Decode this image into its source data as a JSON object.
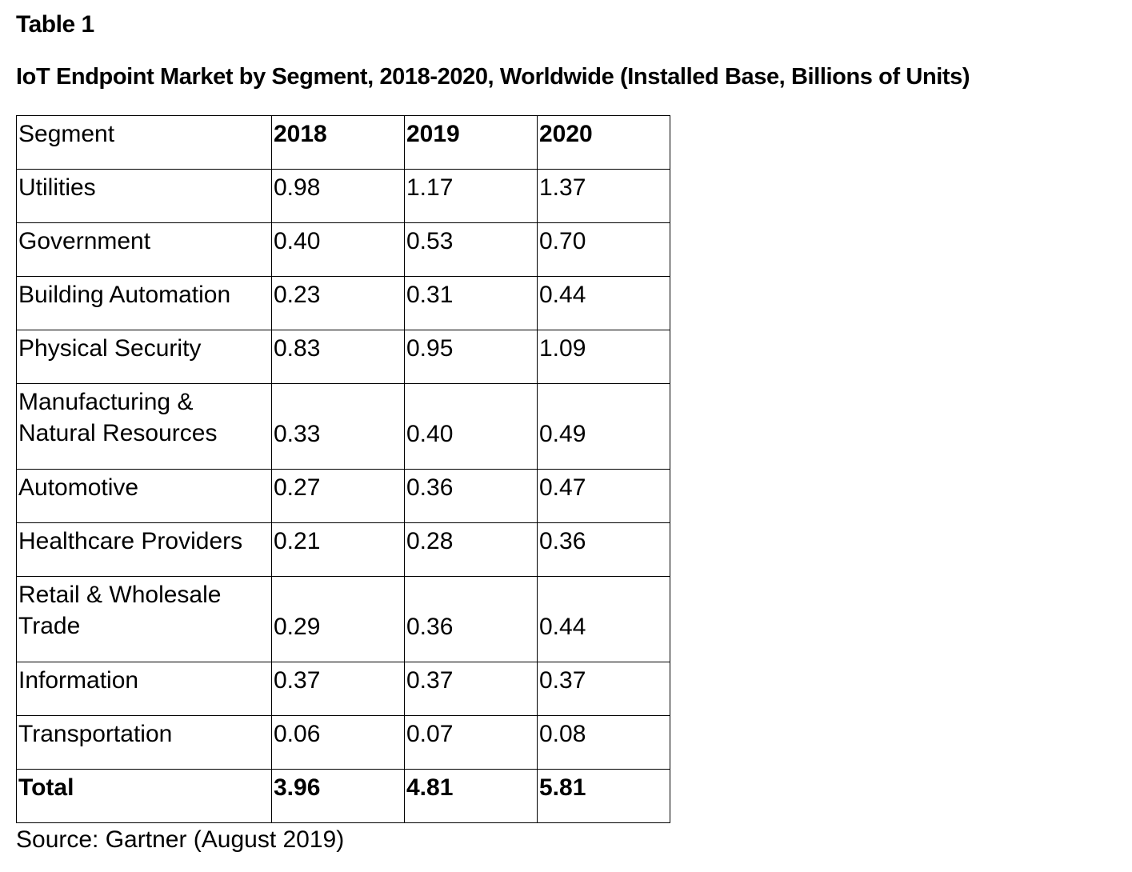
{
  "table_label": "Table 1",
  "title": "IoT Endpoint Market by Segment, 2018-2020, Worldwide (Installed Base, Billions of Units)",
  "columns": [
    "Segment",
    "2018",
    "2019",
    "2020"
  ],
  "rows": [
    {
      "segment": "Utilities",
      "v2018": "0.98",
      "v2019": "1.17",
      "v2020": "1.37"
    },
    {
      "segment": "Government",
      "v2018": "0.40",
      "v2019": "0.53",
      "v2020": "0.70"
    },
    {
      "segment": "Building Automation",
      "v2018": "0.23",
      "v2019": "0.31",
      "v2020": "0.44"
    },
    {
      "segment": "Physical Security",
      "v2018": "0.83",
      "v2019": "0.95",
      "v2020": "1.09"
    },
    {
      "segment": "Manufacturing & Natural Resources",
      "v2018": "0.33",
      "v2019": "0.40",
      "v2020": "0.49"
    },
    {
      "segment": "Automotive",
      "v2018": "0.27",
      "v2019": "0.36",
      "v2020": "0.47"
    },
    {
      "segment": "Healthcare Providers",
      "v2018": "0.21",
      "v2019": "0.28",
      "v2020": "0.36"
    },
    {
      "segment": "Retail & Wholesale Trade",
      "v2018": "0.29",
      "v2019": "0.36",
      "v2020": "0.44"
    },
    {
      "segment": "Information",
      "v2018": "0.37",
      "v2019": "0.37",
      "v2020": "0.37"
    },
    {
      "segment": "Transportation",
      "v2018": "0.06",
      "v2019": "0.07",
      "v2020": "0.08"
    }
  ],
  "total": {
    "label": "Total",
    "v2018": "3.96",
    "v2019": "4.81",
    "v2020": "5.81"
  },
  "source": "Source: Gartner (August 2019)"
}
